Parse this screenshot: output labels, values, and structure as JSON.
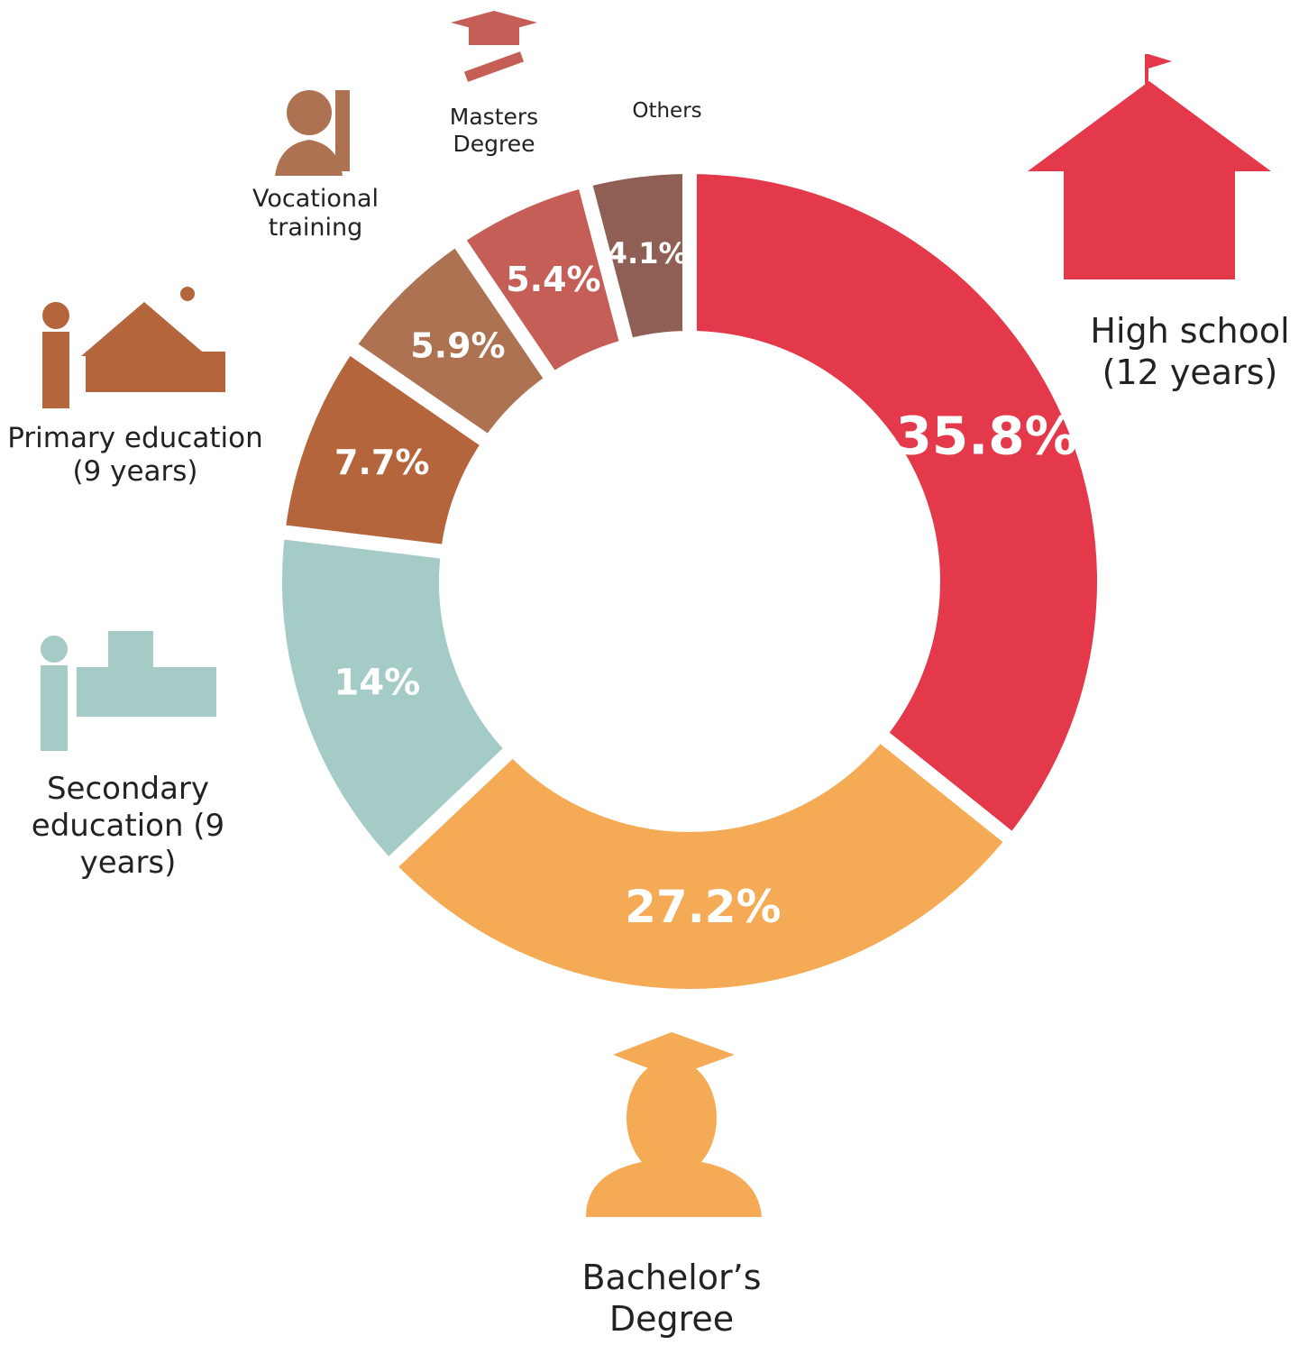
{
  "chart_data": {
    "type": "donut",
    "categories": [
      "High school (12 years)",
      "Bachelor’s Degree",
      "Secondary education (9 years)",
      "Primary education (9 years)",
      "Vocational training",
      "Masters Degree",
      "Others"
    ],
    "values": [
      35.8,
      27.2,
      14,
      7.7,
      5.9,
      5.4,
      4.1
    ],
    "value_labels": [
      "35.8%",
      "27.2%",
      "14%",
      "7.7%",
      "5.9%",
      "5.4%",
      "4.1%"
    ],
    "colors": [
      "#e3394b",
      "#f5aa55",
      "#a5cbc7",
      "#b5653c",
      "#ad7252",
      "#c55e57",
      "#8f5e55"
    ]
  }
}
